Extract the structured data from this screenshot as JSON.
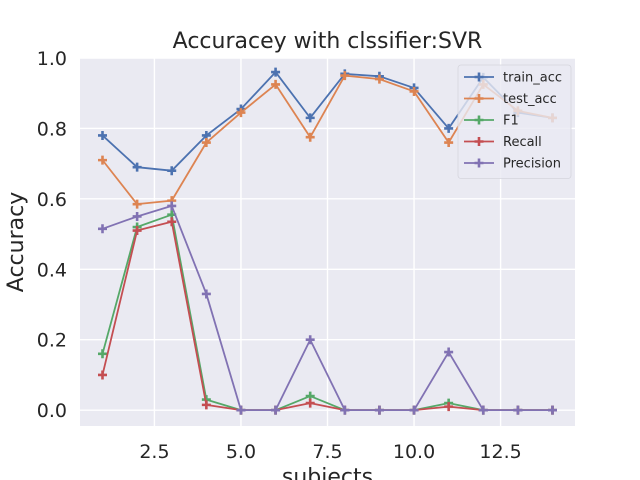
{
  "chart_data": {
    "type": "line",
    "title": "Accuracey with clssifier:SVR",
    "xlabel": "subjects",
    "ylabel": "Accuracy",
    "xlim": [
      0.35,
      14.65
    ],
    "ylim": [
      -0.045,
      1.0
    ],
    "xticks": [
      2.5,
      5.0,
      7.5,
      10.0,
      12.5
    ],
    "xtick_labels": [
      "2.5",
      "5.0",
      "7.5",
      "10.0",
      "12.5"
    ],
    "yticks": [
      0.0,
      0.2,
      0.4,
      0.6,
      0.8,
      1.0
    ],
    "ytick_labels": [
      "0.0",
      "0.2",
      "0.4",
      "0.6",
      "0.8",
      "1.0"
    ],
    "grid": true,
    "legend_position": "top-right",
    "x": [
      1,
      2,
      3,
      4,
      5,
      6,
      7,
      8,
      9,
      10,
      11,
      12,
      13,
      14
    ],
    "series": [
      {
        "name": "train_acc",
        "color": "#4c72b0",
        "values": [
          0.78,
          0.69,
          0.68,
          0.78,
          0.855,
          0.96,
          0.83,
          0.955,
          0.948,
          0.915,
          0.8,
          0.945,
          0.845,
          0.83
        ]
      },
      {
        "name": "test_acc",
        "color": "#dd8452",
        "values": [
          0.71,
          0.585,
          0.595,
          0.76,
          0.845,
          0.925,
          0.775,
          0.95,
          0.94,
          0.905,
          0.76,
          0.925,
          0.85,
          0.83
        ]
      },
      {
        "name": "F1",
        "color": "#55a868",
        "values": [
          0.16,
          0.52,
          0.555,
          0.03,
          0.0,
          0.0,
          0.04,
          0.0,
          0.0,
          0.0,
          0.02,
          0.0,
          0.0,
          0.0
        ]
      },
      {
        "name": "Recall",
        "color": "#c44e52",
        "values": [
          0.1,
          0.51,
          0.535,
          0.015,
          0.0,
          0.0,
          0.02,
          0.0,
          0.0,
          0.0,
          0.01,
          0.0,
          0.0,
          0.0
        ]
      },
      {
        "name": "Precision",
        "color": "#8172b3",
        "values": [
          0.515,
          0.55,
          0.58,
          0.33,
          0.0,
          0.0,
          0.2,
          0.0,
          0.0,
          0.0,
          0.165,
          0.0,
          0.0,
          0.0
        ]
      }
    ]
  }
}
